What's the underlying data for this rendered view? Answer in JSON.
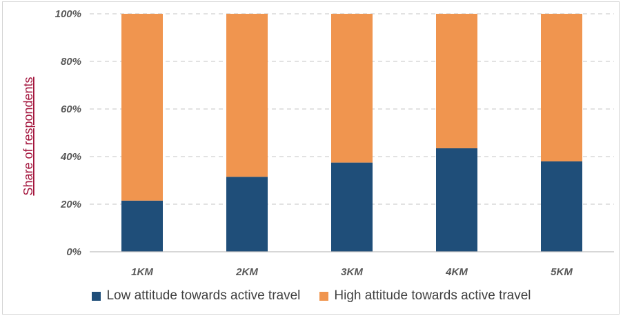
{
  "chart_data": {
    "type": "bar",
    "stacked": true,
    "categories": [
      "1KM",
      "2KM",
      "3KM",
      "4KM",
      "5KM"
    ],
    "series": [
      {
        "name": "Low attitude towards active travel",
        "values": [
          21.5,
          31.5,
          37.5,
          43.5,
          38
        ],
        "color": "#1f4e79"
      },
      {
        "name": "High attitude towards active travel",
        "values": [
          78.5,
          68.5,
          62.5,
          56.5,
          62
        ],
        "color": "#f0954f"
      }
    ],
    "title": "",
    "xlabel": "",
    "ylabel": "Share of respondents",
    "ylim": [
      0,
      100
    ],
    "yticks": [
      "0%",
      "20%",
      "40%",
      "60%",
      "80%",
      "100%"
    ],
    "grid": true,
    "legend": "bottom"
  }
}
